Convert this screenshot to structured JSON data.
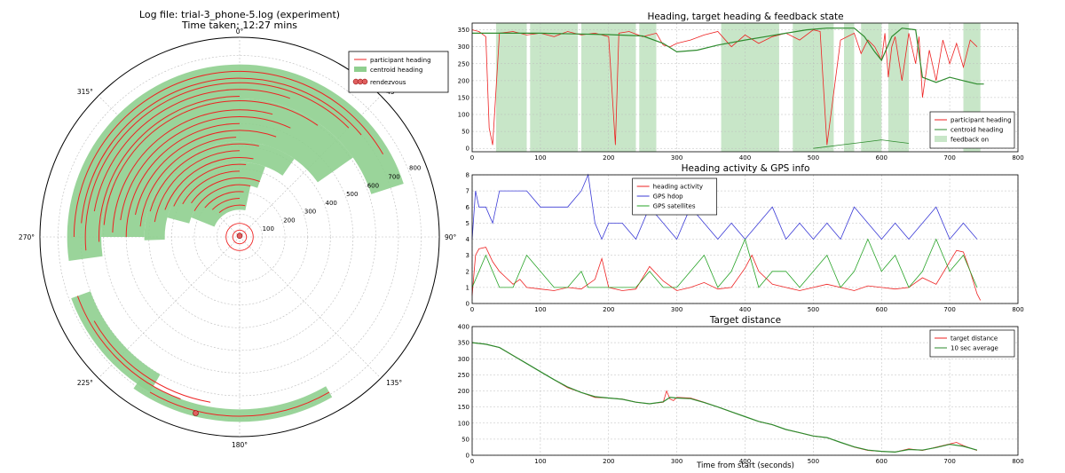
{
  "header": {
    "title_line1": "Log file: trial-3_phone-5.log (experiment)",
    "title_line2": "Time taken: 12:27 mins"
  },
  "colors": {
    "participant": "#ee2222",
    "centroid_fill": "#8fcf8f",
    "centroid_line": "#2e8b2e",
    "feedback": "#c8e6c8",
    "hdop": "#3b3bd6",
    "satellites": "#27a327",
    "grid": "#bbbbbb",
    "rendezvous": "#e06060"
  },
  "chart_data": [
    {
      "type": "polar",
      "title": "Log file: trial-3_phone-5.log (experiment)",
      "subtitle": "Time taken: 12:27 mins",
      "angle_labels": [
        "0°",
        "45°",
        "90°",
        "135°",
        "180°",
        "225°",
        "270°",
        "315°"
      ],
      "radial_ticks": [
        100,
        200,
        300,
        400,
        500,
        600,
        700,
        800
      ],
      "rlim": [
        0,
        880
      ],
      "legend": {
        "position": "top-right",
        "entries": [
          "participant heading",
          "centroid heading",
          "rendezvous"
        ]
      },
      "rendezvous": [
        {
          "angle": 0,
          "r": 5
        },
        {
          "angle": 194,
          "r": 800
        }
      ],
      "centroid_bands": [
        {
          "start": 262,
          "end": 432,
          "r_in": 610,
          "r_out": 760
        },
        {
          "start": 270,
          "end": 415,
          "r_in": 420,
          "r_out": 610
        },
        {
          "start": 268,
          "end": 395,
          "r_in": 330,
          "r_out": 420
        },
        {
          "start": 285,
          "end": 380,
          "r_in": 230,
          "r_out": 330
        },
        {
          "start": 292,
          "end": 372,
          "r_in": 120,
          "r_out": 230
        },
        {
          "start": 210,
          "end": 250,
          "r_in": 700,
          "r_out": 790
        },
        {
          "start": 150,
          "end": 215,
          "r_in": 760,
          "r_out": 815
        }
      ],
      "heading_arcs": [
        {
          "start": 270,
          "end": 420,
          "r": 730
        },
        {
          "start": 275,
          "end": 410,
          "r": 700
        },
        {
          "start": 265,
          "end": 405,
          "r": 680
        },
        {
          "start": 280,
          "end": 380,
          "r": 650
        },
        {
          "start": 268,
          "end": 360,
          "r": 620
        },
        {
          "start": 275,
          "end": 395,
          "r": 600
        },
        {
          "start": 272,
          "end": 375,
          "r": 560
        },
        {
          "start": 278,
          "end": 385,
          "r": 530
        },
        {
          "start": 270,
          "end": 360,
          "r": 500
        },
        {
          "start": 282,
          "end": 380,
          "r": 470
        },
        {
          "start": 276,
          "end": 358,
          "r": 440
        },
        {
          "start": 286,
          "end": 372,
          "r": 410
        },
        {
          "start": 280,
          "end": 360,
          "r": 380
        },
        {
          "start": 290,
          "end": 370,
          "r": 350
        },
        {
          "start": 295,
          "end": 365,
          "r": 320
        },
        {
          "start": 300,
          "end": 360,
          "r": 290
        },
        {
          "start": 305,
          "end": 380,
          "r": 260
        },
        {
          "start": 300,
          "end": 372,
          "r": 230
        },
        {
          "start": 310,
          "end": 365,
          "r": 200
        },
        {
          "start": 315,
          "end": 360,
          "r": 170
        },
        {
          "start": 320,
          "end": 370,
          "r": 140
        },
        {
          "start": 200,
          "end": 250,
          "r": 760
        },
        {
          "start": 150,
          "end": 210,
          "r": 790
        },
        {
          "start": 190,
          "end": 240,
          "r": 740
        },
        {
          "start": 0,
          "end": 360,
          "r": 30
        },
        {
          "start": 0,
          "end": 360,
          "r": 60
        }
      ]
    },
    {
      "type": "line",
      "title": "Heading, target heading & feedback state",
      "xlim": [
        0,
        800
      ],
      "ylim": [
        -10,
        370
      ],
      "x_ticks": [
        0,
        100,
        200,
        300,
        400,
        500,
        600,
        700,
        800
      ],
      "y_ticks": [
        0,
        50,
        100,
        150,
        200,
        250,
        300,
        350
      ],
      "grid": true,
      "legend": {
        "position": "bottom-right",
        "entries": [
          "participant heading",
          "centroid heading",
          "feedback on"
        ]
      },
      "feedback_on": [
        [
          35,
          80
        ],
        [
          85,
          155
        ],
        [
          160,
          240
        ],
        [
          245,
          270
        ],
        [
          365,
          450
        ],
        [
          470,
          530
        ],
        [
          545,
          560
        ],
        [
          570,
          600
        ],
        [
          610,
          640
        ],
        [
          720,
          745
        ]
      ],
      "series": [
        {
          "name": "participant heading",
          "x": [
            0,
            10,
            20,
            25,
            30,
            40,
            60,
            80,
            100,
            120,
            140,
            160,
            180,
            200,
            210,
            215,
            230,
            250,
            270,
            280,
            290,
            300,
            320,
            340,
            360,
            380,
            400,
            420,
            440,
            460,
            480,
            500,
            510,
            520,
            540,
            560,
            570,
            580,
            590,
            600,
            605,
            610,
            615,
            620,
            630,
            640,
            650,
            655,
            660,
            670,
            680,
            690,
            700,
            710,
            720,
            730,
            740
          ],
          "y": [
            350,
            345,
            330,
            60,
            10,
            340,
            345,
            335,
            340,
            330,
            345,
            335,
            340,
            330,
            10,
            340,
            345,
            330,
            340,
            305,
            300,
            310,
            320,
            335,
            345,
            300,
            335,
            310,
            330,
            340,
            320,
            350,
            345,
            10,
            320,
            340,
            280,
            320,
            300,
            260,
            340,
            210,
            300,
            330,
            200,
            340,
            250,
            330,
            150,
            290,
            200,
            320,
            250,
            310,
            240,
            320,
            300
          ]
        },
        {
          "name": "centroid heading",
          "x": [
            0,
            50,
            100,
            150,
            200,
            250,
            280,
            300,
            330,
            360,
            400,
            430,
            460,
            490,
            520,
            560,
            575,
            590,
            600,
            615,
            630,
            650,
            660,
            680,
            700,
            720,
            740,
            750
          ],
          "y": [
            340,
            340,
            340,
            338,
            336,
            332,
            310,
            285,
            290,
            305,
            320,
            330,
            340,
            350,
            355,
            355,
            330,
            285,
            260,
            330,
            355,
            350,
            210,
            195,
            210,
            200,
            190,
            190
          ]
        },
        {
          "name": "low heading segment",
          "x": [
            500,
            520,
            540,
            560,
            580,
            600,
            620,
            640
          ],
          "y": [
            0,
            5,
            10,
            15,
            20,
            25,
            20,
            15
          ]
        }
      ]
    },
    {
      "type": "line",
      "title": "Heading activity & GPS info",
      "xlim": [
        0,
        800
      ],
      "ylim": [
        0,
        8
      ],
      "x_ticks": [
        0,
        100,
        200,
        300,
        400,
        500,
        600,
        700,
        800
      ],
      "y_ticks": [
        0,
        1,
        2,
        3,
        4,
        5,
        6,
        7,
        8
      ],
      "grid": true,
      "legend": {
        "position": "top-center",
        "entries": [
          "heading activity",
          "GPS hdop",
          "GPS satellites"
        ]
      },
      "series": [
        {
          "name": "heading activity",
          "x": [
            0,
            5,
            10,
            20,
            30,
            40,
            50,
            60,
            70,
            80,
            100,
            120,
            140,
            160,
            180,
            190,
            200,
            220,
            240,
            260,
            280,
            300,
            320,
            340,
            360,
            380,
            400,
            410,
            420,
            440,
            460,
            480,
            500,
            520,
            540,
            560,
            580,
            600,
            620,
            640,
            660,
            680,
            700,
            710,
            720,
            730,
            740,
            745
          ],
          "y": [
            0.5,
            3,
            3.4,
            3.5,
            2.6,
            2.0,
            1.6,
            1.2,
            1.5,
            1.0,
            0.9,
            0.8,
            1.0,
            0.9,
            1.5,
            2.8,
            1.0,
            0.8,
            0.9,
            2.3,
            1.4,
            0.8,
            1.0,
            1.3,
            0.9,
            1.0,
            2.2,
            3.0,
            2.0,
            1.2,
            1.0,
            0.8,
            1.0,
            1.2,
            1.0,
            0.8,
            1.1,
            1.0,
            0.9,
            1.0,
            1.6,
            1.2,
            2.6,
            3.3,
            3.2,
            2.0,
            0.6,
            0.2
          ]
        },
        {
          "name": "GPS hdop",
          "x": [
            0,
            5,
            10,
            20,
            30,
            40,
            60,
            80,
            100,
            120,
            140,
            160,
            170,
            180,
            190,
            200,
            220,
            240,
            260,
            280,
            300,
            320,
            340,
            360,
            380,
            400,
            420,
            440,
            460,
            480,
            500,
            520,
            540,
            560,
            580,
            600,
            620,
            640,
            660,
            680,
            700,
            720,
            740
          ],
          "y": [
            4,
            7,
            6,
            6,
            5,
            7,
            7,
            7,
            6,
            6,
            6,
            7,
            8,
            5,
            4,
            5,
            5,
            4,
            6,
            5,
            4,
            6,
            5,
            4,
            5,
            4,
            5,
            6,
            4,
            5,
            4,
            5,
            4,
            6,
            5,
            4,
            5,
            4,
            5,
            6,
            4,
            5,
            4
          ]
        },
        {
          "name": "GPS satellites",
          "x": [
            0,
            10,
            20,
            30,
            40,
            60,
            80,
            100,
            120,
            140,
            160,
            170,
            180,
            200,
            220,
            240,
            260,
            280,
            300,
            320,
            340,
            360,
            380,
            400,
            420,
            440,
            460,
            480,
            500,
            520,
            540,
            560,
            580,
            600,
            620,
            640,
            660,
            680,
            700,
            720,
            740
          ],
          "y": [
            1,
            2,
            3,
            2,
            1,
            1,
            3,
            2,
            1,
            1,
            2,
            1,
            1,
            1,
            1,
            1,
            2,
            1,
            1,
            2,
            3,
            1,
            2,
            4,
            1,
            2,
            2,
            1,
            2,
            3,
            1,
            2,
            4,
            2,
            3,
            1,
            2,
            4,
            2,
            3,
            1
          ]
        }
      ]
    },
    {
      "type": "line",
      "title": "Target distance",
      "xlabel": "Time from start (seconds)",
      "xlim": [
        0,
        800
      ],
      "ylim": [
        0,
        400
      ],
      "x_ticks": [
        0,
        100,
        200,
        300,
        400,
        500,
        600,
        700,
        800
      ],
      "y_ticks": [
        0,
        50,
        100,
        150,
        200,
        250,
        300,
        350,
        400
      ],
      "grid": true,
      "legend": {
        "position": "top-right",
        "entries": [
          "target distance",
          "10 sec average"
        ]
      },
      "series": [
        {
          "name": "target distance",
          "x": [
            0,
            20,
            40,
            60,
            80,
            100,
            120,
            140,
            160,
            180,
            200,
            220,
            240,
            260,
            280,
            285,
            290,
            295,
            300,
            320,
            340,
            360,
            380,
            400,
            420,
            440,
            460,
            480,
            500,
            520,
            540,
            560,
            580,
            600,
            620,
            640,
            660,
            680,
            700,
            710,
            720,
            740
          ],
          "y": [
            350,
            345,
            335,
            310,
            285,
            260,
            235,
            210,
            195,
            180,
            178,
            175,
            165,
            160,
            165,
            200,
            175,
            170,
            180,
            178,
            165,
            150,
            135,
            120,
            105,
            95,
            80,
            70,
            60,
            55,
            40,
            25,
            15,
            12,
            10,
            20,
            15,
            25,
            35,
            40,
            30,
            15
          ]
        },
        {
          "name": "10 sec average",
          "x": [
            0,
            20,
            40,
            60,
            80,
            100,
            120,
            140,
            160,
            180,
            200,
            220,
            240,
            260,
            280,
            290,
            300,
            320,
            340,
            360,
            380,
            400,
            420,
            440,
            460,
            480,
            500,
            520,
            540,
            560,
            580,
            600,
            620,
            640,
            660,
            680,
            700,
            720,
            740
          ],
          "y": [
            350,
            345,
            335,
            310,
            285,
            260,
            235,
            212,
            195,
            182,
            178,
            174,
            165,
            160,
            166,
            180,
            178,
            176,
            164,
            150,
            135,
            120,
            105,
            95,
            80,
            70,
            60,
            55,
            40,
            26,
            16,
            12,
            10,
            18,
            16,
            24,
            34,
            28,
            16
          ]
        }
      ]
    }
  ]
}
